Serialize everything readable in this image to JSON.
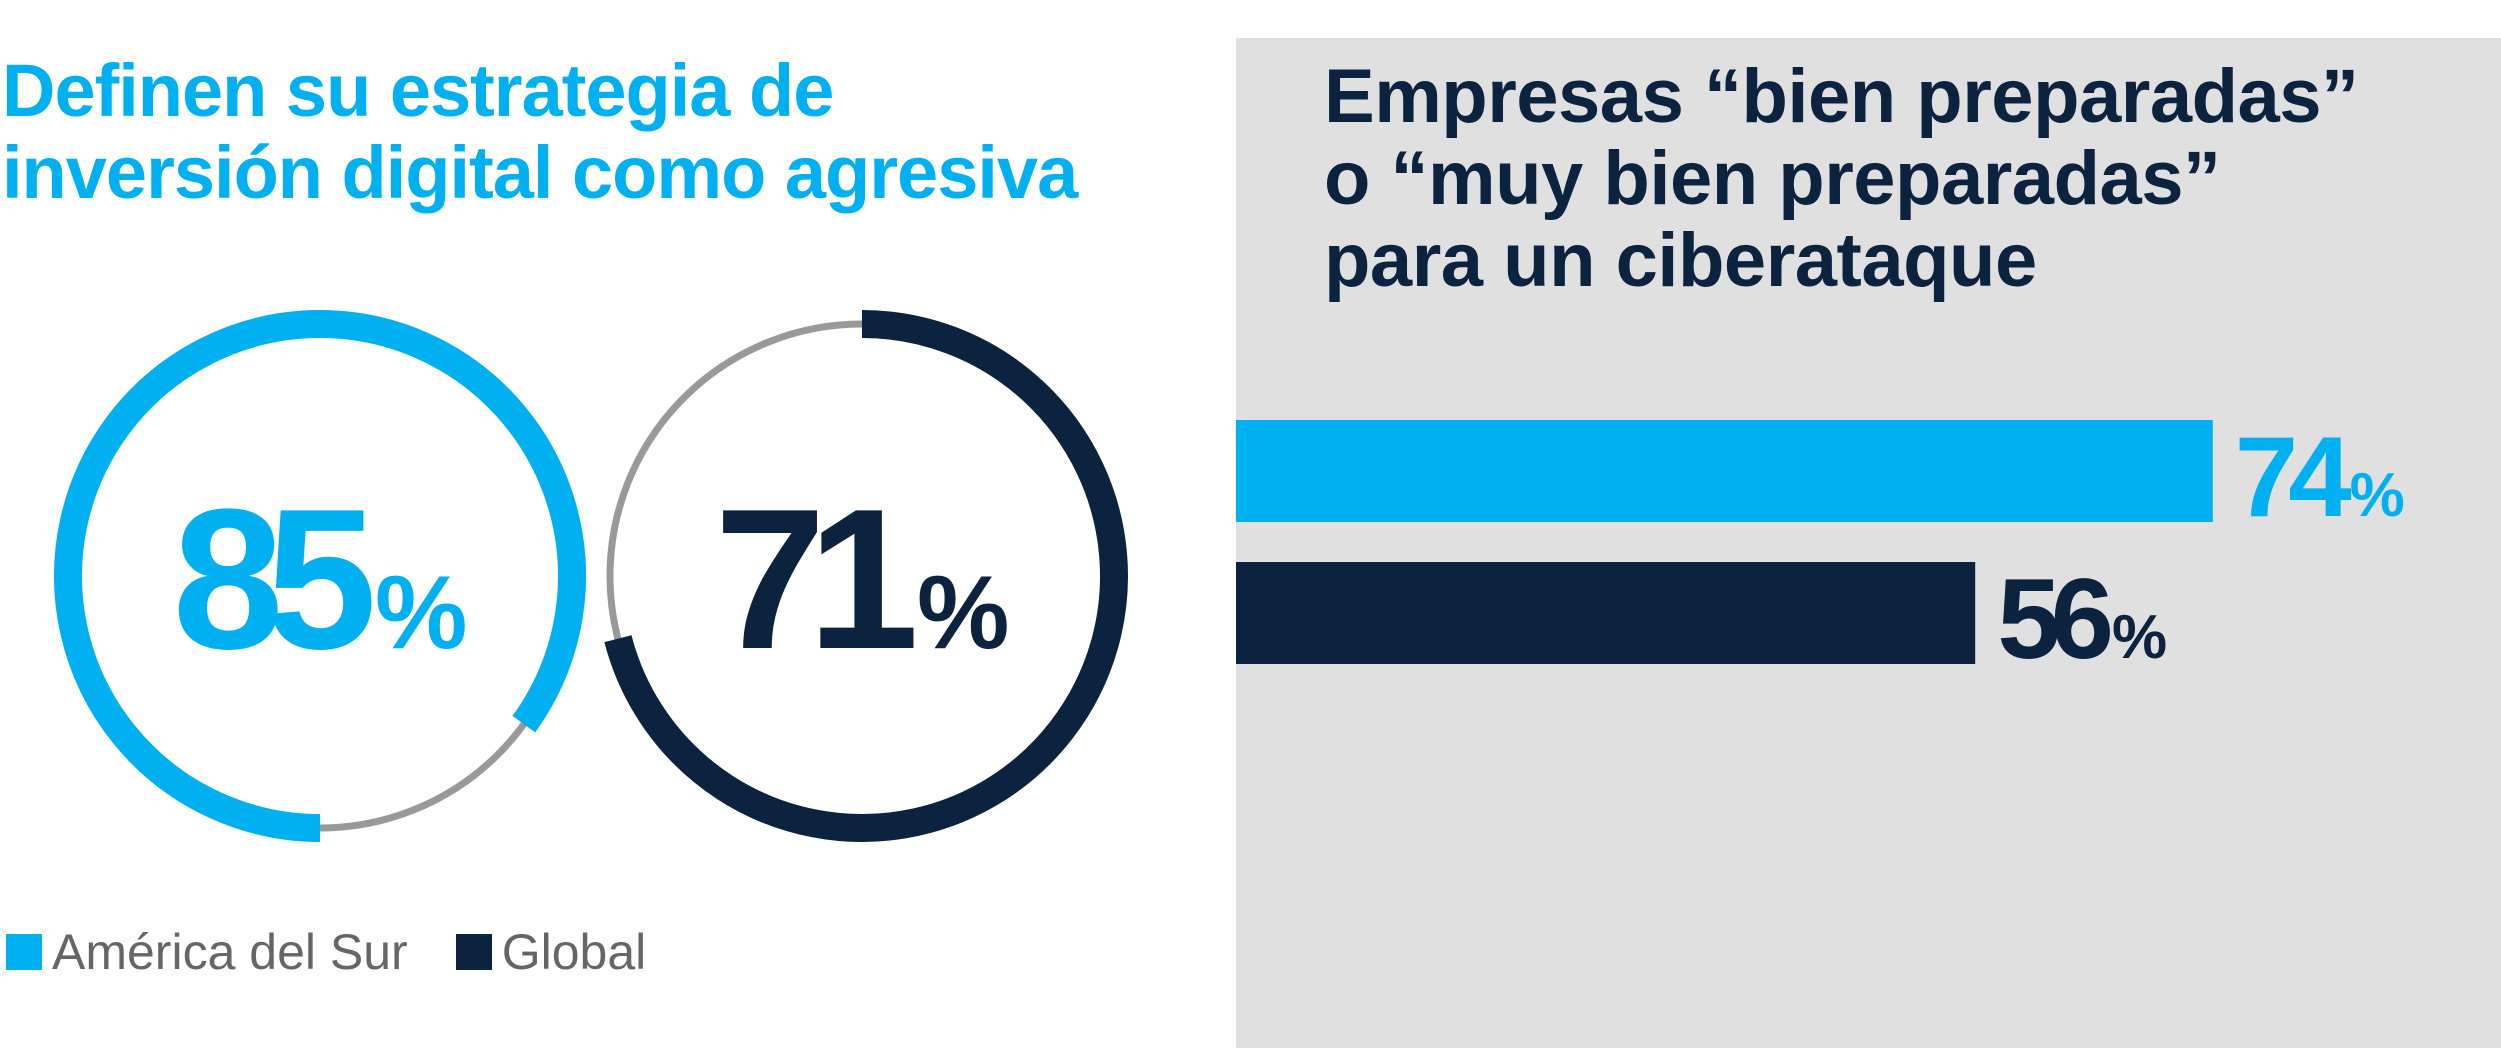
{
  "colors": {
    "south_america": "#00b0f0",
    "global": "#0c2340",
    "track": "#999999",
    "panel_bg": "#e0e0e0"
  },
  "chart_data": [
    {
      "type": "pie",
      "title_lines": [
        "Definen su estrategia de",
        "inversión digital como agresiva"
      ],
      "series": [
        {
          "name": "América del Sur",
          "value": 85,
          "unit": "%",
          "label": "85"
        },
        {
          "name": "Global",
          "value": 71,
          "unit": "%",
          "label": "71"
        }
      ],
      "legend": {
        "placement": "bottom-left"
      },
      "legend_entries": [
        "América del Sur",
        "Global"
      ]
    },
    {
      "type": "bar",
      "orientation": "horizontal",
      "title_lines": [
        "Empresas “bien preparadas”",
        "o “muy bien preparadas”",
        "para un ciberataque"
      ],
      "categories": [
        "América del Sur",
        "Global"
      ],
      "values": [
        74,
        56
      ],
      "value_labels": [
        "74",
        "56"
      ],
      "unit": "%",
      "xlim": [
        0,
        100
      ],
      "grid": false
    }
  ]
}
